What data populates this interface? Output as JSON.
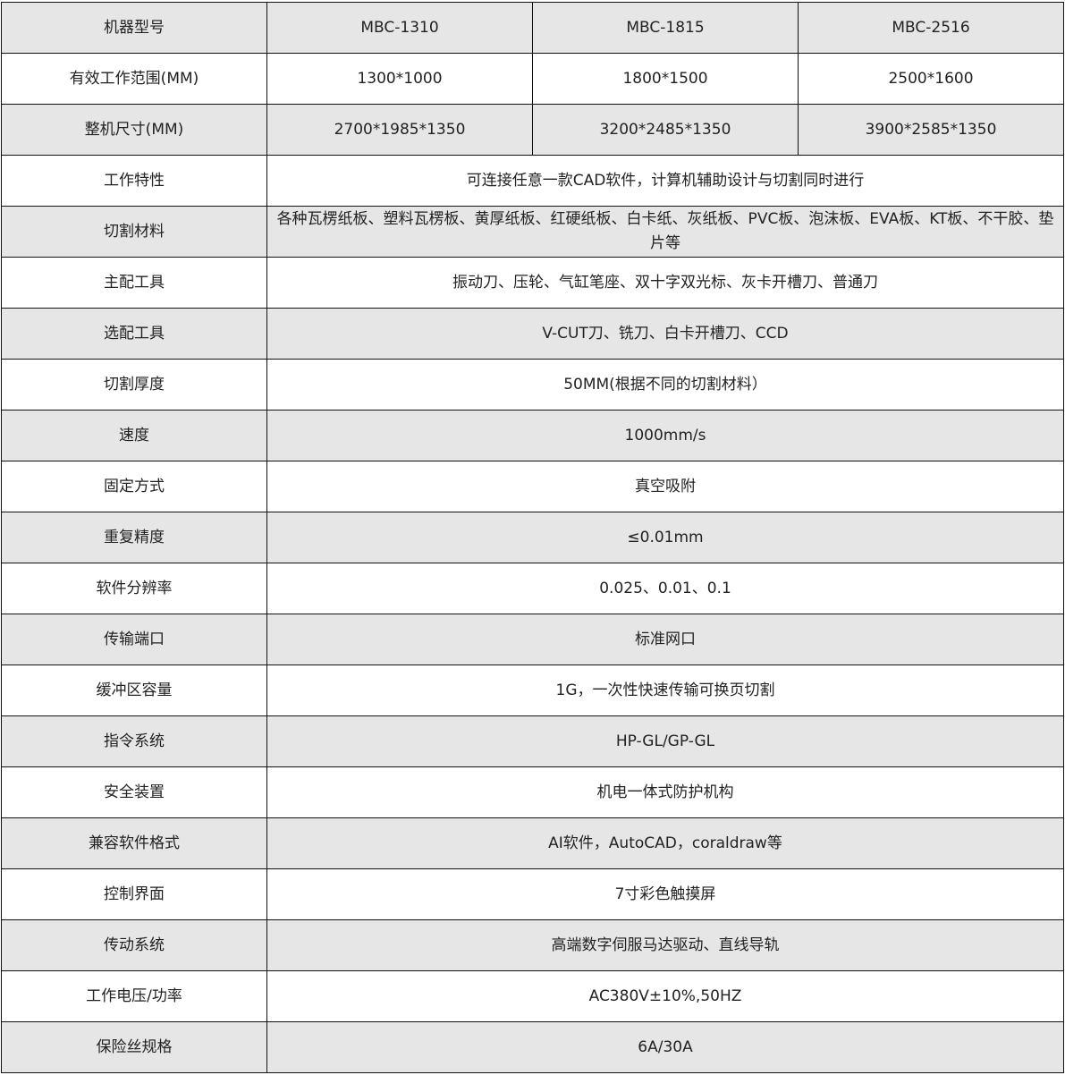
{
  "models": [
    "MBC-1310",
    "MBC-1815",
    "MBC-2516"
  ],
  "header_label": "机器型号",
  "multi_rows": [
    {
      "label": "有效工作范围(MM)",
      "values": [
        "1300*1000",
        "1800*1500",
        "2500*1600"
      ]
    },
    {
      "label": "整机尺寸(MM)",
      "values": [
        "2700*1985*1350",
        "3200*2485*1350",
        "3900*2585*1350"
      ]
    }
  ],
  "rows": [
    {
      "label": "工作特性",
      "value": "可连接任意一款CAD软件，计算机辅助设计与切割同时进行"
    },
    {
      "label": "切割材料",
      "value": "各种瓦楞纸板、塑料瓦楞板、黄厚纸板、红硬纸板、白卡纸、灰纸板、PVC板、泡沫板、EVA板、KT板、不干胶、垫片等"
    },
    {
      "label": "主配工具",
      "value": "振动刀、压轮、气缸笔座、双十字双光标、灰卡开槽刀、普通刀"
    },
    {
      "label": "选配工具",
      "value": "V-CUT刀、铣刀、白卡开槽刀、CCD"
    },
    {
      "label": "切割厚度",
      "value": "50MM(根据不同的切割材料）"
    },
    {
      "label": "速度",
      "value": "1000mm/s"
    },
    {
      "label": "固定方式",
      "value": "真空吸附"
    },
    {
      "label": "重复精度",
      "value": "≤0.01mm"
    },
    {
      "label": "软件分辨率",
      "value": "0.025、0.01、0.1"
    },
    {
      "label": "传输端口",
      "value": "标准网口"
    },
    {
      "label": "缓冲区容量",
      "value": "1G，一次性快速传输可换页切割"
    },
    {
      "label": "指令系统",
      "value": "HP-GL/GP-GL"
    },
    {
      "label": "安全装置",
      "value": "机电一体式防护机构"
    },
    {
      "label": "兼容软件格式",
      "value": "AI软件，AutoCAD，coraldraw等"
    },
    {
      "label": "控制界面",
      "value": "7寸彩色触摸屏"
    },
    {
      "label": "传动系统",
      "value": "高端数字伺服马达驱动、直线导轨"
    },
    {
      "label": "工作电压/功率",
      "value": "AC380V±10%,50HZ"
    },
    {
      "label": "保险丝规格",
      "value": "6A/30A"
    }
  ]
}
